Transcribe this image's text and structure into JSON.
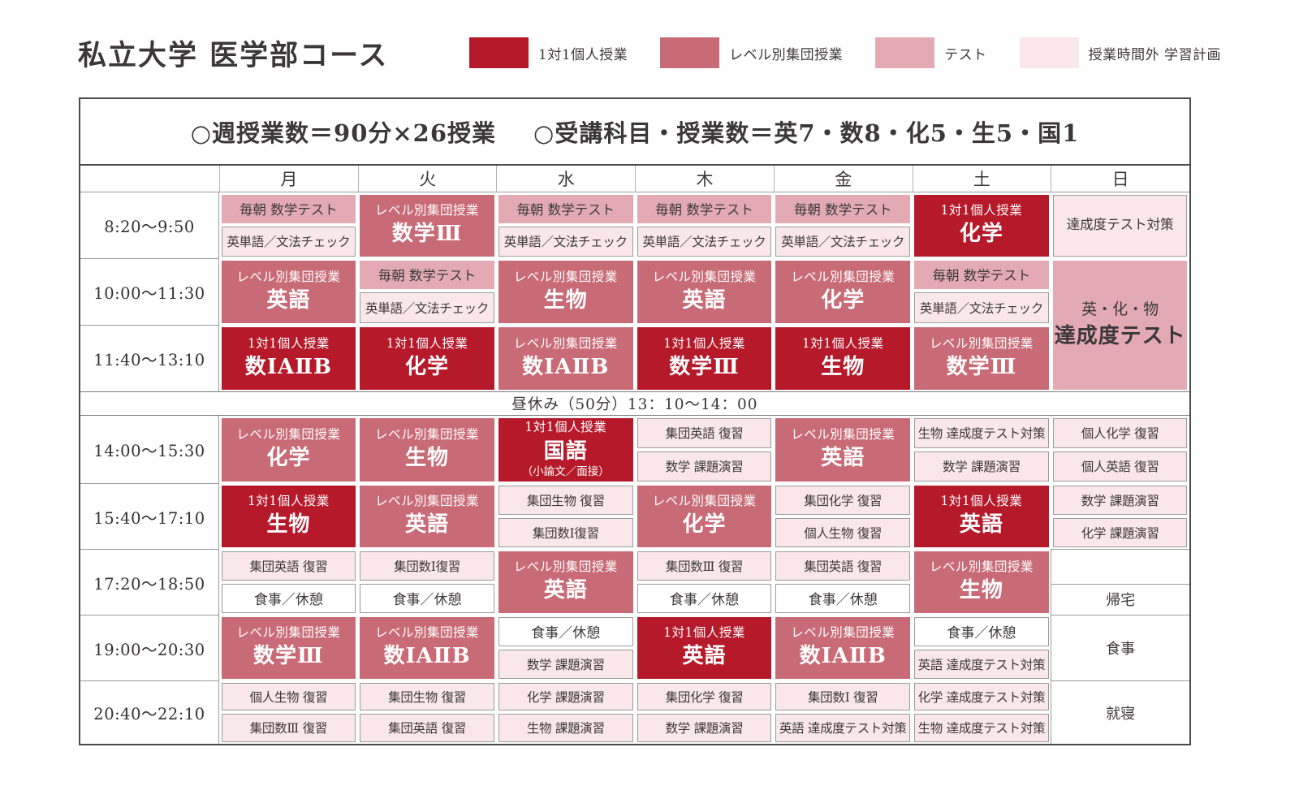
{
  "title": "私立大学 医学部コース",
  "legend": [
    {
      "label": "1対1個人授業",
      "color": "#b6192a"
    },
    {
      "label": "レベル別集団授業",
      "color": "#c96b76"
    },
    {
      "label": "テスト",
      "color": "#e3aab4"
    },
    {
      "label": "授業時間外 学習計画",
      "color": "#f9e7e9"
    }
  ],
  "summary": {
    "part1": "○週授業数＝90分×26授業",
    "part2": "○受講科目・授業数＝英7・数8・化5・生5・国1"
  },
  "days": [
    "月",
    "火",
    "水",
    "木",
    "金",
    "土",
    "日"
  ],
  "lunch": "昼休み（50分）13：10～14：00",
  "rows": [
    {
      "time": "8:20～9:50",
      "cells": [
        {
          "t": "split",
          "top": {
            "text": "毎朝 数学テスト",
            "c": "pink"
          },
          "bottom": {
            "text": "英単語／文法チェック",
            "c": "light"
          }
        },
        {
          "t": "lesson",
          "c": "rose",
          "label": "レベル別集団授業",
          "subject": "数学Ⅲ"
        },
        {
          "t": "split",
          "top": {
            "text": "毎朝 数学テスト",
            "c": "pink"
          },
          "bottom": {
            "text": "英単語／文法チェック",
            "c": "light"
          }
        },
        {
          "t": "split",
          "top": {
            "text": "毎朝 数学テスト",
            "c": "pink"
          },
          "bottom": {
            "text": "英単語／文法チェック",
            "c": "light"
          }
        },
        {
          "t": "split",
          "top": {
            "text": "毎朝 数学テスト",
            "c": "pink"
          },
          "bottom": {
            "text": "英単語／文法チェック",
            "c": "light"
          }
        },
        {
          "t": "lesson",
          "c": "dark",
          "label": "1対1個人授業",
          "subject": "化学"
        },
        {
          "t": "single",
          "text": "達成度テスト対策"
        }
      ]
    },
    {
      "time": "10:00～11:30",
      "cells": [
        {
          "t": "lesson",
          "c": "rose",
          "label": "レベル別集団授業",
          "subject": "英語"
        },
        {
          "t": "split",
          "top": {
            "text": "毎朝 数学テスト",
            "c": "pink"
          },
          "bottom": {
            "text": "英単語／文法チェック",
            "c": "light"
          }
        },
        {
          "t": "lesson",
          "c": "rose",
          "label": "レベル別集団授業",
          "subject": "生物"
        },
        {
          "t": "lesson",
          "c": "rose",
          "label": "レベル別集団授業",
          "subject": "英語"
        },
        {
          "t": "lesson",
          "c": "rose",
          "label": "レベル別集団授業",
          "subject": "化学"
        },
        {
          "t": "split",
          "top": {
            "text": "毎朝 数学テスト",
            "c": "pink"
          },
          "bottom": {
            "text": "英単語／文法チェック",
            "c": "light"
          }
        },
        {
          "t": "merged",
          "lines": [
            "英・化・物",
            "達成度テスト"
          ],
          "span": 2
        }
      ]
    },
    {
      "time": "11:40～13:10",
      "cells": [
        {
          "t": "lesson",
          "c": "dark",
          "label": "1対1個人授業",
          "subject": "数ⅠAⅡB"
        },
        {
          "t": "lesson",
          "c": "dark",
          "label": "1対1個人授業",
          "subject": "化学"
        },
        {
          "t": "lesson",
          "c": "rose",
          "label": "レベル別集団授業",
          "subject": "数ⅠAⅡB"
        },
        {
          "t": "lesson",
          "c": "dark",
          "label": "1対1個人授業",
          "subject": "数学Ⅲ"
        },
        {
          "t": "lesson",
          "c": "dark",
          "label": "1対1個人授業",
          "subject": "生物"
        },
        {
          "t": "lesson",
          "c": "rose",
          "label": "レベル別集団授業",
          "subject": "数学Ⅲ"
        },
        {
          "t": "skip"
        }
      ]
    },
    {
      "time": "14:00～15:30",
      "cells": [
        {
          "t": "lesson",
          "c": "rose",
          "label": "レベル別集団授業",
          "subject": "化学"
        },
        {
          "t": "lesson",
          "c": "rose",
          "label": "レベル別集団授業",
          "subject": "生物"
        },
        {
          "t": "lesson",
          "c": "dark",
          "label": "1対1個人授業",
          "subject": "国語",
          "note": "（小論文／面接）"
        },
        {
          "t": "split",
          "top": {
            "text": "集団英語 復習",
            "c": "light"
          },
          "bottom": {
            "text": "数学 課題演習",
            "c": "light"
          }
        },
        {
          "t": "lesson",
          "c": "rose",
          "label": "レベル別集団授業",
          "subject": "英語"
        },
        {
          "t": "split",
          "top": {
            "text": "生物 達成度テスト対策",
            "c": "light"
          },
          "bottom": {
            "text": "数学 課題演習",
            "c": "light"
          }
        },
        {
          "t": "split",
          "top": {
            "text": "個人化学 復習",
            "c": "light"
          },
          "bottom": {
            "text": "個人英語 復習",
            "c": "light"
          }
        }
      ]
    },
    {
      "time": "15:40～17:10",
      "cells": [
        {
          "t": "lesson",
          "c": "dark",
          "label": "1対1個人授業",
          "subject": "生物"
        },
        {
          "t": "lesson",
          "c": "rose",
          "label": "レベル別集団授業",
          "subject": "英語"
        },
        {
          "t": "split",
          "top": {
            "text": "集団生物 復習",
            "c": "light"
          },
          "bottom": {
            "text": "集団数Ⅰ復習",
            "c": "light"
          }
        },
        {
          "t": "lesson",
          "c": "rose",
          "label": "レベル別集団授業",
          "subject": "化学"
        },
        {
          "t": "split",
          "top": {
            "text": "集団化学 復習",
            "c": "light"
          },
          "bottom": {
            "text": "個人生物 復習",
            "c": "light"
          }
        },
        {
          "t": "lesson",
          "c": "dark",
          "label": "1対1個人授業",
          "subject": "英語"
        },
        {
          "t": "split",
          "top": {
            "text": "数学 課題演習",
            "c": "light"
          },
          "bottom": {
            "text": "化学 課題演習",
            "c": "light"
          }
        }
      ]
    },
    {
      "time": "17:20～18:50",
      "cells": [
        {
          "t": "split",
          "top": {
            "text": "集団英語 復習",
            "c": "light"
          },
          "bottom": {
            "text": "食事／休憩",
            "c": "white"
          }
        },
        {
          "t": "split",
          "top": {
            "text": "集団数Ⅰ復習",
            "c": "light"
          },
          "bottom": {
            "text": "食事／休憩",
            "c": "white"
          }
        },
        {
          "t": "lesson",
          "c": "rose",
          "label": "レベル別集団授業",
          "subject": "英語"
        },
        {
          "t": "split",
          "top": {
            "text": "集団数Ⅲ 復習",
            "c": "light"
          },
          "bottom": {
            "text": "食事／休憩",
            "c": "white"
          }
        },
        {
          "t": "split",
          "top": {
            "text": "集団英語 復習",
            "c": "light"
          },
          "bottom": {
            "text": "食事／休憩",
            "c": "white"
          }
        },
        {
          "t": "lesson",
          "c": "rose",
          "label": "レベル別集団授業",
          "subject": "生物"
        },
        {
          "t": "sunsplit",
          "top": "",
          "bottom": "帰宅"
        }
      ]
    },
    {
      "time": "19:00～20:30",
      "cells": [
        {
          "t": "lesson",
          "c": "rose",
          "label": "レベル別集団授業",
          "subject": "数学Ⅲ"
        },
        {
          "t": "lesson",
          "c": "rose",
          "label": "レベル別集団授業",
          "subject": "数ⅠAⅡB"
        },
        {
          "t": "split",
          "top": {
            "text": "食事／休憩",
            "c": "white"
          },
          "bottom": {
            "text": "数学 課題演習",
            "c": "light"
          }
        },
        {
          "t": "lesson",
          "c": "dark",
          "label": "1対1個人授業",
          "subject": "英語"
        },
        {
          "t": "lesson",
          "c": "rose",
          "label": "レベル別集団授業",
          "subject": "数ⅠAⅡB"
        },
        {
          "t": "split",
          "top": {
            "text": "食事／休憩",
            "c": "white"
          },
          "bottom": {
            "text": "英語 達成度テスト対策",
            "c": "light"
          }
        },
        {
          "t": "plain",
          "text": "食事"
        }
      ]
    },
    {
      "time": "20:40～22:10",
      "cells": [
        {
          "t": "split",
          "top": {
            "text": "個人生物 復習",
            "c": "light"
          },
          "bottom": {
            "text": "集団数Ⅲ 復習",
            "c": "light"
          }
        },
        {
          "t": "split",
          "top": {
            "text": "集団生物 復習",
            "c": "light"
          },
          "bottom": {
            "text": "集団英語 復習",
            "c": "light"
          }
        },
        {
          "t": "split",
          "top": {
            "text": "化学 課題演習",
            "c": "light"
          },
          "bottom": {
            "text": "生物 課題演習",
            "c": "light"
          }
        },
        {
          "t": "split",
          "top": {
            "text": "集団化学 復習",
            "c": "light"
          },
          "bottom": {
            "text": "数学 課題演習",
            "c": "light"
          }
        },
        {
          "t": "split",
          "top": {
            "text": "集団数Ⅰ 復習",
            "c": "light"
          },
          "bottom": {
            "text": "英語 達成度テスト対策",
            "c": "light"
          }
        },
        {
          "t": "split",
          "top": {
            "text": "化学 達成度テスト対策",
            "c": "light"
          },
          "bottom": {
            "text": "生物 達成度テスト対策",
            "c": "light"
          }
        },
        {
          "t": "plain",
          "text": "就寝"
        }
      ]
    }
  ]
}
